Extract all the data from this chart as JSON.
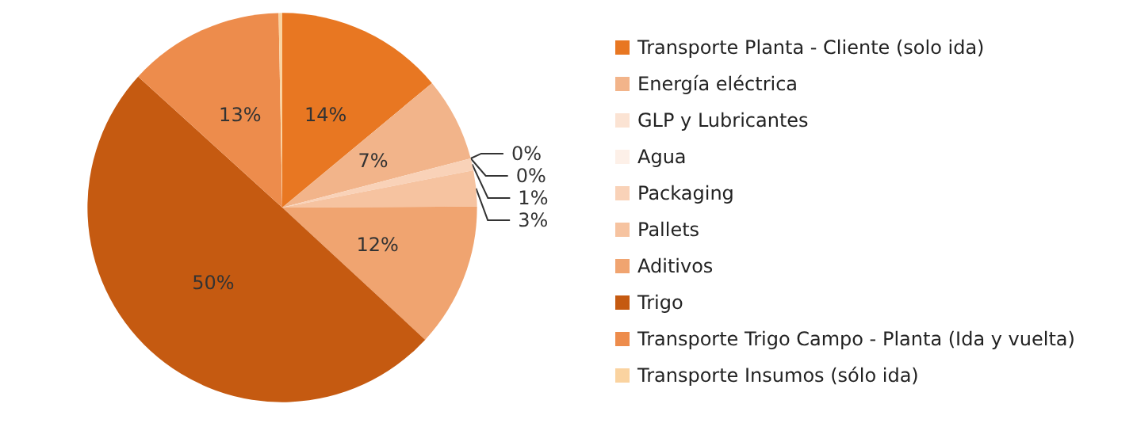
{
  "chart_data": {
    "type": "pie",
    "categories": [
      "Transporte Planta - Cliente (solo ida)",
      "Energía eléctrica",
      "GLP y Lubricantes",
      "Agua",
      "Packaging",
      "Pallets",
      "Aditivos",
      "Trigo",
      "Transporte Trigo Campo - Planta (Ida y vuelta)",
      "Transporte Insumos (sólo ida)"
    ],
    "values": [
      14,
      7,
      0,
      0,
      1,
      3,
      12,
      50,
      13,
      0.3
    ],
    "value_labels": [
      "14%",
      "7%",
      "0%",
      "0%",
      "1%",
      "3%",
      "12%",
      "50%",
      "13%",
      null
    ],
    "colors": [
      "#e87722",
      "#f2b48a",
      "#fbe3d3",
      "#fdf0e8",
      "#f9d2b8",
      "#f6c3a0",
      "#f0a470",
      "#c55a11",
      "#ed8c4c",
      "#fad3a0"
    ],
    "legend": "right"
  }
}
